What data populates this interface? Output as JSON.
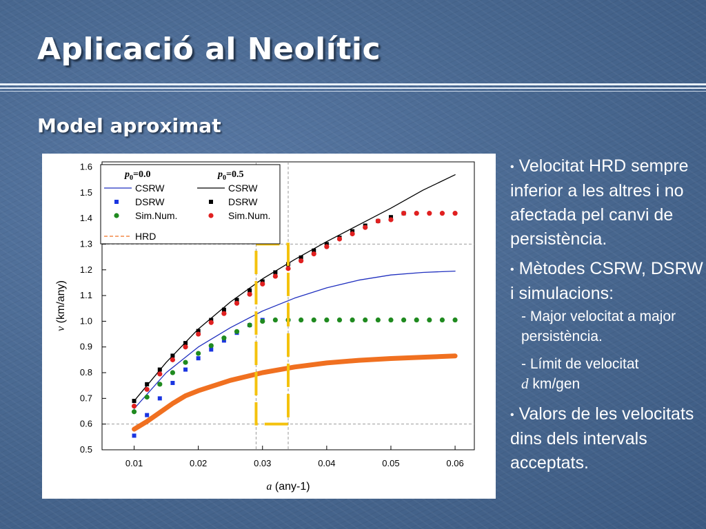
{
  "slide": {
    "title": "Aplicació al Neolític",
    "subtitle": "Model aproximat"
  },
  "bullets": {
    "b1": "Velocitat HRD sempre inferior a les altres i no afectada pel canvi de persistència.",
    "b2": "Mètodes CSRW, DSRW i simulacions:",
    "sub1": "- Major velocitat a major persistència.",
    "sub2_prefix": "- Límit de velocitat",
    "sub2_var": "d",
    "sub2_suffix": " km/gen",
    "b3": "Valors de les velocitats dins dels intervals acceptats."
  },
  "chart_data": {
    "type": "scatter",
    "xlabel_var": "a",
    "xlabel_unit": "(any-1)",
    "ylabel_var": "v",
    "ylabel_unit": "(km/any)",
    "xlim": [
      0.005,
      0.063
    ],
    "ylim": [
      0.5,
      1.62
    ],
    "xticks": [
      "0.01",
      "0.02",
      "0.03",
      "0.04",
      "0.05",
      "0.06"
    ],
    "yticks": [
      "0.5",
      "0.6",
      "0.7",
      "0.8",
      "0.9",
      "1.0",
      "1.1",
      "1.2",
      "1.3",
      "1.4",
      "1.5",
      "1.6"
    ],
    "legend": {
      "col1_var": "p",
      "col1_sub": "0",
      "col1_val": "=0.0",
      "col2_var": "p",
      "col2_sub": "0",
      "col2_val": "=0.5",
      "csrw": "CSRW",
      "dsrw": "DSRW",
      "sim": "Sim.Num.",
      "hrd": "HRD",
      "placement": "top-left"
    },
    "reference_lines": {
      "horizontal": [
        0.6,
        1.3
      ],
      "vertical": [
        0.029,
        0.034
      ]
    },
    "highlight_box": {
      "x": [
        0.029,
        0.034
      ],
      "y": [
        0.6,
        1.3
      ],
      "color": "#f4c20d"
    },
    "colors": {
      "csrw_p0": "#1f2fbf",
      "dsrw_p0": "#1a35e0",
      "sim_p0": "#1f8a1f",
      "csrw_p05": "#000000",
      "dsrw_p05": "#000000",
      "sim_p05": "#e02020",
      "hrd": "#f07020"
    },
    "series": [
      {
        "name": "CSRW p0=0.0",
        "kind": "line",
        "x": [
          0.01,
          0.015,
          0.02,
          0.025,
          0.03,
          0.035,
          0.04,
          0.045,
          0.05,
          0.055,
          0.06
        ],
        "y": [
          0.66,
          0.8,
          0.9,
          0.975,
          1.04,
          1.09,
          1.13,
          1.16,
          1.18,
          1.19,
          1.195
        ]
      },
      {
        "name": "DSRW p0=0.0",
        "kind": "square",
        "x": [
          0.01,
          0.012,
          0.014,
          0.016,
          0.018,
          0.02,
          0.022,
          0.024,
          0.026,
          0.028,
          0.03
        ],
        "y": [
          0.555,
          0.635,
          0.7,
          0.76,
          0.812,
          0.856,
          0.89,
          0.925,
          0.955,
          0.985,
          1.005
        ]
      },
      {
        "name": "Sim.Num. p0=0.0",
        "kind": "circle",
        "x": [
          0.01,
          0.012,
          0.014,
          0.016,
          0.018,
          0.02,
          0.022,
          0.024,
          0.026,
          0.028,
          0.03,
          0.032,
          0.034,
          0.036,
          0.038,
          0.04,
          0.042,
          0.044,
          0.046,
          0.048,
          0.05,
          0.052,
          0.054,
          0.056,
          0.058,
          0.06
        ],
        "y": [
          0.648,
          0.705,
          0.755,
          0.8,
          0.84,
          0.875,
          0.905,
          0.935,
          0.96,
          0.985,
          1.0,
          1.005,
          1.005,
          1.005,
          1.005,
          1.005,
          1.005,
          1.005,
          1.005,
          1.005,
          1.005,
          1.005,
          1.005,
          1.005,
          1.005,
          1.005
        ]
      },
      {
        "name": "CSRW p0=0.5",
        "kind": "line",
        "x": [
          0.01,
          0.015,
          0.02,
          0.025,
          0.03,
          0.035,
          0.04,
          0.045,
          0.05,
          0.055,
          0.06
        ],
        "y": [
          0.69,
          0.84,
          0.97,
          1.075,
          1.165,
          1.24,
          1.31,
          1.375,
          1.44,
          1.51,
          1.57
        ]
      },
      {
        "name": "DSRW p0=0.5",
        "kind": "square",
        "x": [
          0.01,
          0.012,
          0.014,
          0.016,
          0.018,
          0.02,
          0.022,
          0.024,
          0.026,
          0.028,
          0.03,
          0.032,
          0.034,
          0.036,
          0.038,
          0.04,
          0.042,
          0.044,
          0.046,
          0.048,
          0.05,
          0.052
        ],
        "y": [
          0.69,
          0.755,
          0.812,
          0.866,
          0.915,
          0.962,
          1.005,
          1.045,
          1.083,
          1.12,
          1.155,
          1.19,
          1.222,
          1.248,
          1.275,
          1.3,
          1.325,
          1.35,
          1.372,
          1.39,
          1.405,
          1.42
        ]
      },
      {
        "name": "Sim.Num. p0=0.5",
        "kind": "circle",
        "x": [
          0.01,
          0.012,
          0.014,
          0.016,
          0.018,
          0.02,
          0.022,
          0.024,
          0.026,
          0.028,
          0.03,
          0.032,
          0.034,
          0.036,
          0.038,
          0.04,
          0.042,
          0.044,
          0.046,
          0.048,
          0.05,
          0.052,
          0.054,
          0.056,
          0.058,
          0.06
        ],
        "y": [
          0.67,
          0.735,
          0.795,
          0.85,
          0.9,
          0.95,
          0.995,
          1.03,
          1.07,
          1.105,
          1.145,
          1.175,
          1.205,
          1.235,
          1.262,
          1.29,
          1.32,
          1.34,
          1.365,
          1.39,
          1.395,
          1.42,
          1.42,
          1.42,
          1.42,
          1.42
        ]
      },
      {
        "name": "HRD",
        "kind": "thick-line",
        "x": [
          0.01,
          0.012,
          0.014,
          0.016,
          0.018,
          0.02,
          0.025,
          0.03,
          0.035,
          0.04,
          0.045,
          0.05,
          0.055,
          0.06
        ],
        "y": [
          0.58,
          0.61,
          0.645,
          0.68,
          0.71,
          0.73,
          0.77,
          0.8,
          0.822,
          0.838,
          0.848,
          0.855,
          0.86,
          0.865
        ]
      }
    ]
  }
}
